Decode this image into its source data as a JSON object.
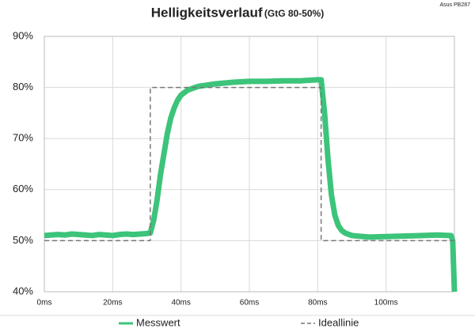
{
  "chart_data": {
    "type": "line",
    "title": "Helligkeitsverlauf",
    "subtitle": "(GtG 80-50%)",
    "annotation": "Asus PB287",
    "xlim": [
      0,
      120
    ],
    "ylim": [
      40,
      90
    ],
    "xticks": [
      {
        "value": 0,
        "label": "0ms"
      },
      {
        "value": 20,
        "label": "20ms"
      },
      {
        "value": 40,
        "label": "40ms"
      },
      {
        "value": 60,
        "label": "60ms"
      },
      {
        "value": 80,
        "label": "80ms"
      },
      {
        "value": 100,
        "label": "100ms"
      }
    ],
    "yticks": [
      {
        "value": 40,
        "label": "40%"
      },
      {
        "value": 50,
        "label": "50%"
      },
      {
        "value": 60,
        "label": "60%"
      },
      {
        "value": 70,
        "label": "70%"
      },
      {
        "value": 80,
        "label": "80%"
      },
      {
        "value": 90,
        "label": "90%"
      }
    ],
    "grid": true,
    "legend": "bottom",
    "series": [
      {
        "name": "Messwert",
        "color": "#3cc47a",
        "dash": false,
        "x": [
          0,
          2,
          4,
          6,
          8,
          10,
          12,
          14,
          16,
          18,
          20,
          22,
          24,
          26,
          28,
          30,
          31,
          32,
          33,
          34,
          35,
          36,
          37,
          38,
          39,
          40,
          42,
          45,
          50,
          55,
          60,
          65,
          70,
          75,
          80,
          81,
          82,
          83,
          84,
          85,
          86,
          87,
          88,
          90,
          95,
          100,
          105,
          110,
          115,
          119,
          119.5,
          120
        ],
        "values": [
          51,
          51.1,
          51.2,
          51.1,
          51.3,
          51.2,
          51.1,
          51.0,
          51.2,
          51.1,
          51.0,
          51.2,
          51.3,
          51.2,
          51.3,
          51.4,
          51.5,
          54,
          58,
          63,
          67,
          71,
          74,
          76,
          77.5,
          78.5,
          79.5,
          80.2,
          80.7,
          81,
          81.2,
          81.2,
          81.3,
          81.3,
          81.5,
          81.5,
          75,
          66,
          59,
          55,
          53,
          52,
          51.5,
          51,
          50.7,
          50.8,
          50.9,
          51,
          51.1,
          51,
          50,
          40
        ]
      },
      {
        "name": "Ideallinie",
        "color": "#777777",
        "dash": true,
        "x": [
          0,
          31,
          31,
          81,
          81,
          120
        ],
        "values": [
          50,
          50,
          80,
          80,
          50,
          50
        ]
      }
    ]
  }
}
